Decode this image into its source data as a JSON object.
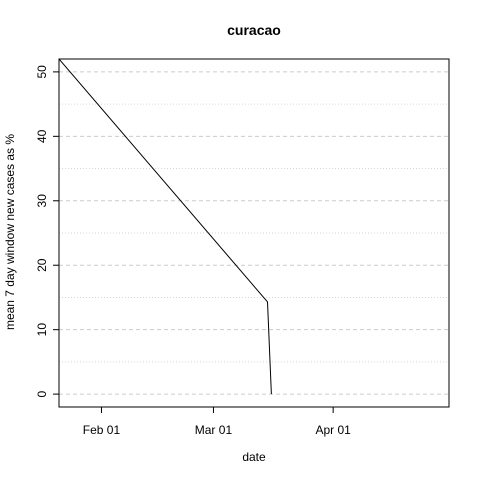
{
  "chart_data": {
    "type": "line",
    "title": "curacao",
    "xlabel": "date",
    "ylabel": "mean  7  day window new cases as %",
    "x_type": "date",
    "xlim": [
      "2020-01-21",
      "2020-05-01"
    ],
    "ylim": [
      -2,
      52
    ],
    "x_ticks": [
      {
        "date": "2020-02-01",
        "label": "Feb 01"
      },
      {
        "date": "2020-03-01",
        "label": "Mar 01"
      },
      {
        "date": "2020-04-01",
        "label": "Apr 01"
      }
    ],
    "y_ticks": [
      0,
      10,
      20,
      30,
      40,
      50
    ],
    "y_minor_gridlines": [
      5,
      15,
      25,
      35,
      45
    ],
    "grid": true,
    "series": [
      {
        "color": "#000000",
        "points": [
          {
            "x": "2020-01-21",
            "y": 52
          },
          {
            "x": "2020-03-15",
            "y": 14.3
          },
          {
            "x": "2020-03-16",
            "y": 0
          }
        ]
      }
    ]
  }
}
